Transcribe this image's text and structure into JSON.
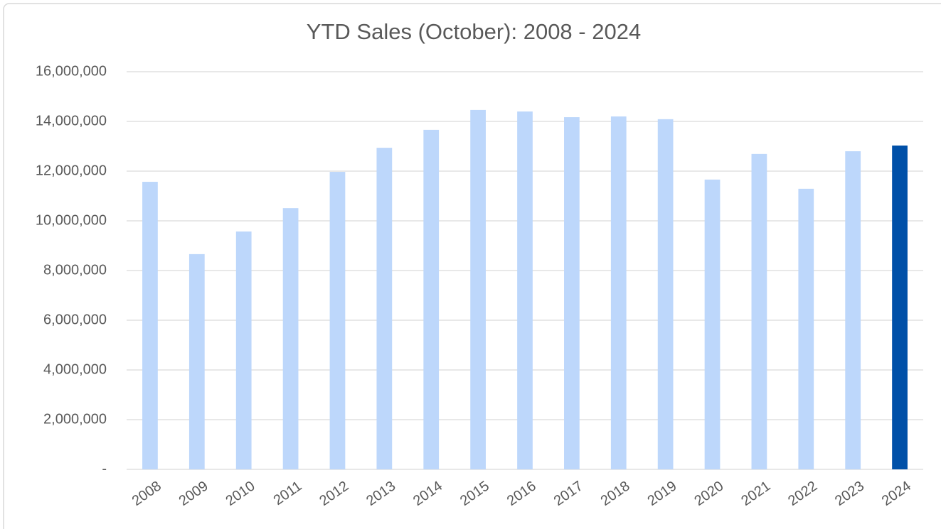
{
  "chart_data": {
    "type": "bar",
    "title": "YTD Sales (October): 2008 - 2024",
    "categories": [
      "2008",
      "2009",
      "2010",
      "2011",
      "2012",
      "2013",
      "2014",
      "2015",
      "2016",
      "2017",
      "2018",
      "2019",
      "2020",
      "2021",
      "2022",
      "2023",
      "2024"
    ],
    "values": [
      11570000,
      8660000,
      9570000,
      10510000,
      11970000,
      12940000,
      13660000,
      14460000,
      14400000,
      14170000,
      14200000,
      14090000,
      11660000,
      12690000,
      11290000,
      12800000,
      13030000
    ],
    "colors": [
      "#bdd7fb",
      "#bdd7fb",
      "#bdd7fb",
      "#bdd7fb",
      "#bdd7fb",
      "#bdd7fb",
      "#bdd7fb",
      "#bdd7fb",
      "#bdd7fb",
      "#bdd7fb",
      "#bdd7fb",
      "#bdd7fb",
      "#bdd7fb",
      "#bdd7fb",
      "#bdd7fb",
      "#bdd7fb",
      "#0050a8"
    ],
    "ylim": [
      0,
      16000000
    ],
    "yticks": [
      {
        "value": 0,
        "label": "-"
      },
      {
        "value": 2000000,
        "label": "2,000,000"
      },
      {
        "value": 4000000,
        "label": "4,000,000"
      },
      {
        "value": 6000000,
        "label": "6,000,000"
      },
      {
        "value": 8000000,
        "label": "8,000,000"
      },
      {
        "value": 10000000,
        "label": "10,000,000"
      },
      {
        "value": 12000000,
        "label": "12,000,000"
      },
      {
        "value": 14000000,
        "label": "14,000,000"
      },
      {
        "value": 16000000,
        "label": "16,000,000"
      }
    ],
    "grid": true
  }
}
